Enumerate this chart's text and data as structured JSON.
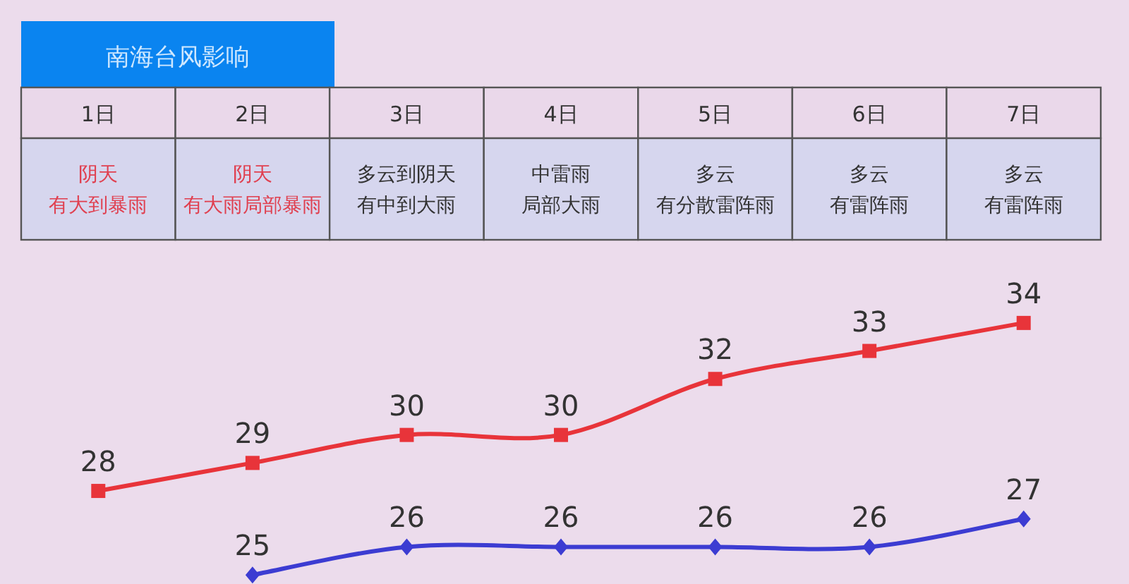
{
  "chart_data": {
    "type": "line",
    "title": "南海台风影响",
    "categories": [
      "1日",
      "2日",
      "3日",
      "4日",
      "5日",
      "6日",
      "7日"
    ],
    "annotations": [
      "阴天",
      "有大到暴雨",
      "阴天",
      "有大雨局部暴雨",
      "多云到阴天",
      "有中到大雨",
      "中雷雨",
      "局部大雨",
      "多云",
      "有分散雷阵雨",
      "多云",
      "有雷阵雨",
      "多云",
      "有雷阵雨"
    ],
    "series": [
      {
        "color": "#e8343a",
        "marker": "square",
        "values": [
          28,
          29,
          30,
          30,
          32,
          33,
          34
        ]
      },
      {
        "color": "#3c3cd2",
        "marker": "diamond",
        "values": [
          null,
          25,
          26,
          26,
          26,
          26,
          27
        ]
      }
    ],
    "data_labels": true
  }
}
